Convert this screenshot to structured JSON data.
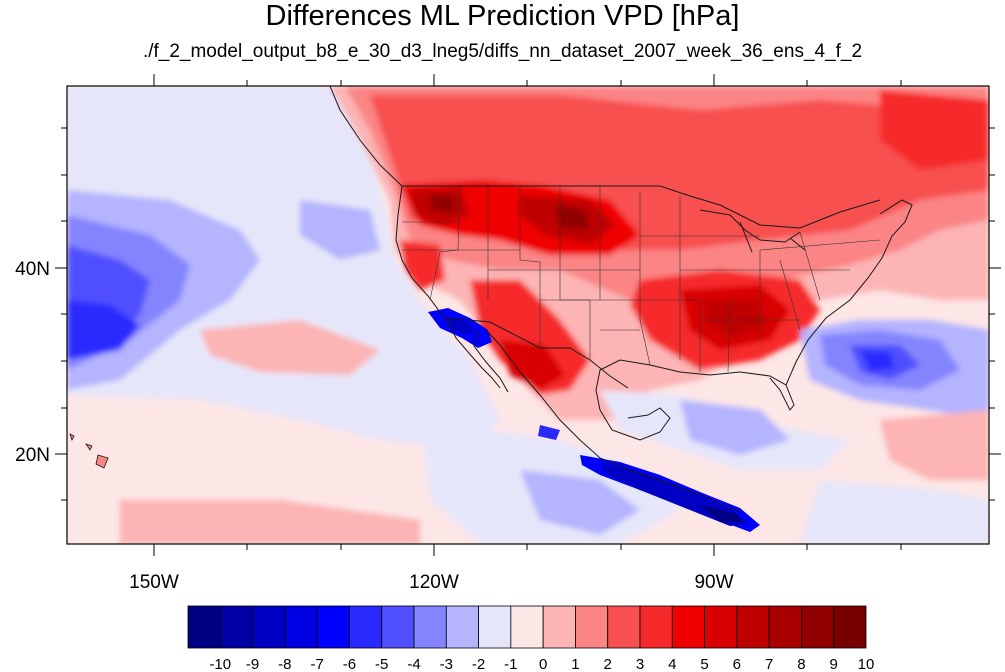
{
  "title": "Differences ML Prediction VPD [hPa]",
  "subtitle": "./f_2_model_output_b8_e_30_d3_lneg5/diffs_nn_dataset_2007_week_36_ens_4_f_2",
  "map": {
    "projection": "cylindrical-equidistant",
    "lon_range": [
      -159,
      -63
    ],
    "lat_range": [
      10,
      60
    ],
    "lon_ticks": [
      "150W",
      "120W",
      "90W"
    ],
    "lat_ticks": [
      "40N",
      "20N"
    ],
    "ocean_background_color": "#fde6e6",
    "features": [
      "US state boundaries",
      "Mexico / Canada borders",
      "coastlines"
    ]
  },
  "colorbar": {
    "labels": [
      "-10",
      "-9",
      "-8",
      "-7",
      "-6",
      "-5",
      "-4",
      "-3",
      "-2",
      "-1",
      "0",
      "1",
      "2",
      "3",
      "4",
      "5",
      "6",
      "7",
      "8",
      "9",
      "10"
    ],
    "colors": [
      "#000084",
      "#0000a4",
      "#0000c4",
      "#0000e4",
      "#0000ff",
      "#2a2aff",
      "#5050ff",
      "#8484ff",
      "#b4b4ff",
      "#e6e6fa",
      "#fde6e6",
      "#fcb4b4",
      "#fb8484",
      "#f85050",
      "#f62a2a",
      "#f00000",
      "#d80000",
      "#c00000",
      "#a80000",
      "#900000",
      "#780000"
    ]
  },
  "regions": [
    {
      "label": "north-us-canada-warm",
      "color": "#f85050"
    },
    {
      "label": "northern-plains-hot",
      "color": "#c00000"
    },
    {
      "label": "southeast-hot",
      "color": "#d80000"
    },
    {
      "label": "pacific-cool",
      "color": "#8484ff"
    },
    {
      "label": "atlantic-cool",
      "color": "#5050ff"
    },
    {
      "label": "baja-coast-cool",
      "color": "#0000ff"
    },
    {
      "label": "central-america-coast-cool",
      "color": "#0000c4"
    }
  ]
}
